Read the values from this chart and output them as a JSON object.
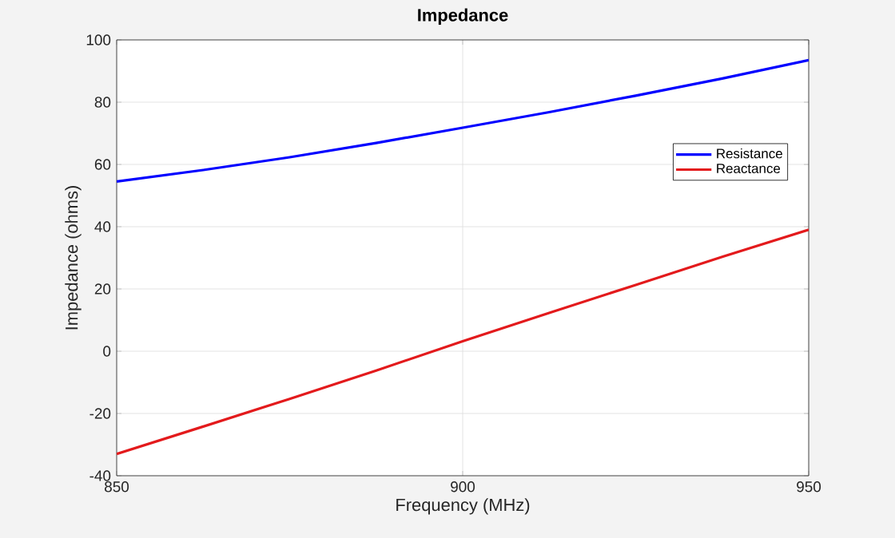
{
  "chart_data": {
    "type": "line",
    "title": "Impedance",
    "xlabel": "Frequency (MHz)",
    "ylabel": "Impedance (ohms)",
    "x": [
      850,
      862.5,
      875,
      887.5,
      900,
      912.5,
      925,
      937.5,
      950
    ],
    "series": [
      {
        "name": "Resistance",
        "color": "#0000ff",
        "values": [
          54.5,
          58.2,
          62.3,
          66.9,
          71.8,
          76.8,
          82.1,
          87.6,
          93.5
        ]
      },
      {
        "name": "Reactance",
        "color": "#e31a1c",
        "values": [
          -33,
          -24.2,
          -15.3,
          -6.2,
          3.2,
          12.3,
          21.3,
          30.3,
          39
        ]
      }
    ],
    "xlim": [
      850,
      950
    ],
    "ylim": [
      -40,
      100
    ],
    "xticks": [
      850,
      900,
      950
    ],
    "yticks": [
      -40,
      -20,
      0,
      20,
      40,
      60,
      80,
      100
    ],
    "grid": true,
    "legend": "right",
    "line_style": "solid",
    "marker": "none"
  }
}
